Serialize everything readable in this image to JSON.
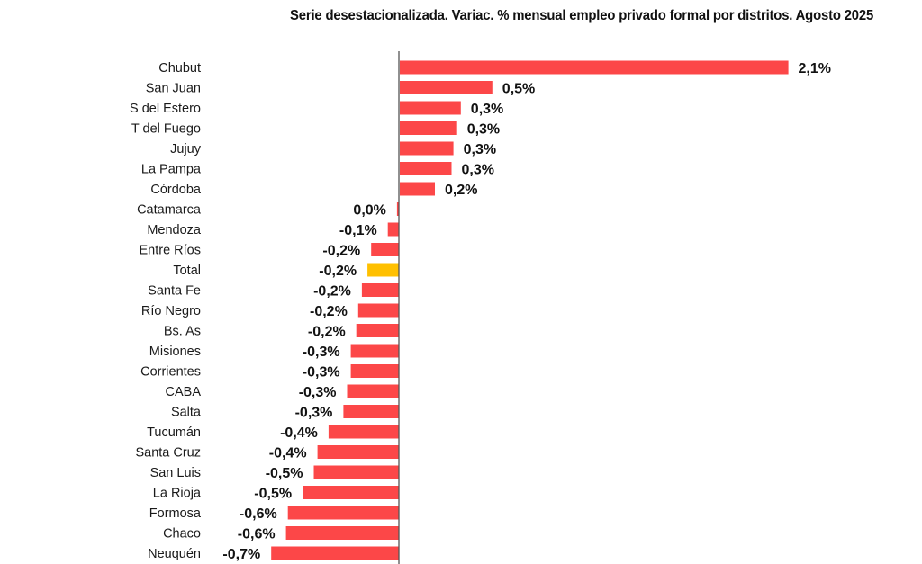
{
  "chart_data": {
    "type": "bar",
    "orientation": "horizontal",
    "title": "Serie desestacionalizada. Variac. % mensual empleo privado formal por distritos. Agosto 2025",
    "xlabel": "",
    "ylabel": "",
    "grid": false,
    "legend": "none",
    "xlim": [
      -0.8,
      2.2
    ],
    "colors": {
      "default": "#fc4748",
      "highlight": "#ffc000",
      "axis": "#555555"
    },
    "categories": [
      "Chubut",
      "San Juan",
      "S del Estero",
      "T del Fuego",
      "Jujuy",
      "La Pampa",
      "Córdoba",
      "Catamarca",
      "Mendoza",
      "Entre Ríos",
      "Total",
      "Santa Fe",
      "Río Negro",
      "Bs. As",
      "Misiones",
      "Corrientes",
      "CABA",
      "Salta",
      "Tucumán",
      "Santa Cruz",
      "San Luis",
      "La Rioja",
      "Formosa",
      "Chaco",
      "Neuquén"
    ],
    "values": [
      2.1,
      0.5,
      0.33,
      0.31,
      0.29,
      0.28,
      0.19,
      -0.01,
      -0.06,
      -0.15,
      -0.17,
      -0.2,
      -0.22,
      -0.23,
      -0.26,
      -0.26,
      -0.28,
      -0.3,
      -0.38,
      -0.44,
      -0.46,
      -0.52,
      -0.6,
      -0.61,
      -0.69
    ],
    "labels": [
      "2,1%",
      "0,5%",
      "0,3%",
      "0,3%",
      "0,3%",
      "0,3%",
      "0,2%",
      "0,0%",
      "-0,1%",
      "-0,2%",
      "-0,2%",
      "-0,2%",
      "-0,2%",
      "-0,2%",
      "-0,3%",
      "-0,3%",
      "-0,3%",
      "-0,3%",
      "-0,4%",
      "-0,4%",
      "-0,5%",
      "-0,5%",
      "-0,6%",
      "-0,6%",
      "-0,7%"
    ],
    "highlight_category": "Total"
  }
}
